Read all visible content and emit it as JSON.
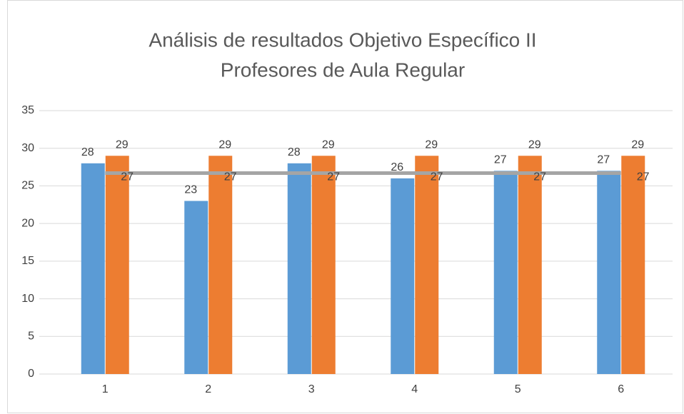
{
  "chart_data": {
    "type": "bar",
    "title": [
      "Análisis de resultados Objetivo Específico II",
      "Profesores de Aula Regular"
    ],
    "categories": [
      "1",
      "2",
      "3",
      "4",
      "5",
      "6"
    ],
    "series": [
      {
        "color": "#5b9bd5",
        "values": [
          28,
          23,
          28,
          26,
          27,
          27
        ]
      },
      {
        "color": "#ed7d31",
        "values": [
          29,
          29,
          29,
          29,
          29,
          29
        ]
      },
      {
        "type": "line",
        "color": "#a5a5a5",
        "values": [
          26.7,
          26.7,
          26.7,
          26.7,
          26.7,
          26.7
        ],
        "value_labels": [
          "27",
          "27",
          "27",
          "27",
          "27",
          "27"
        ]
      }
    ],
    "ylim": [
      0,
      35
    ],
    "yticks": [
      0,
      5,
      10,
      15,
      20,
      25,
      30,
      35
    ],
    "grid": true
  }
}
